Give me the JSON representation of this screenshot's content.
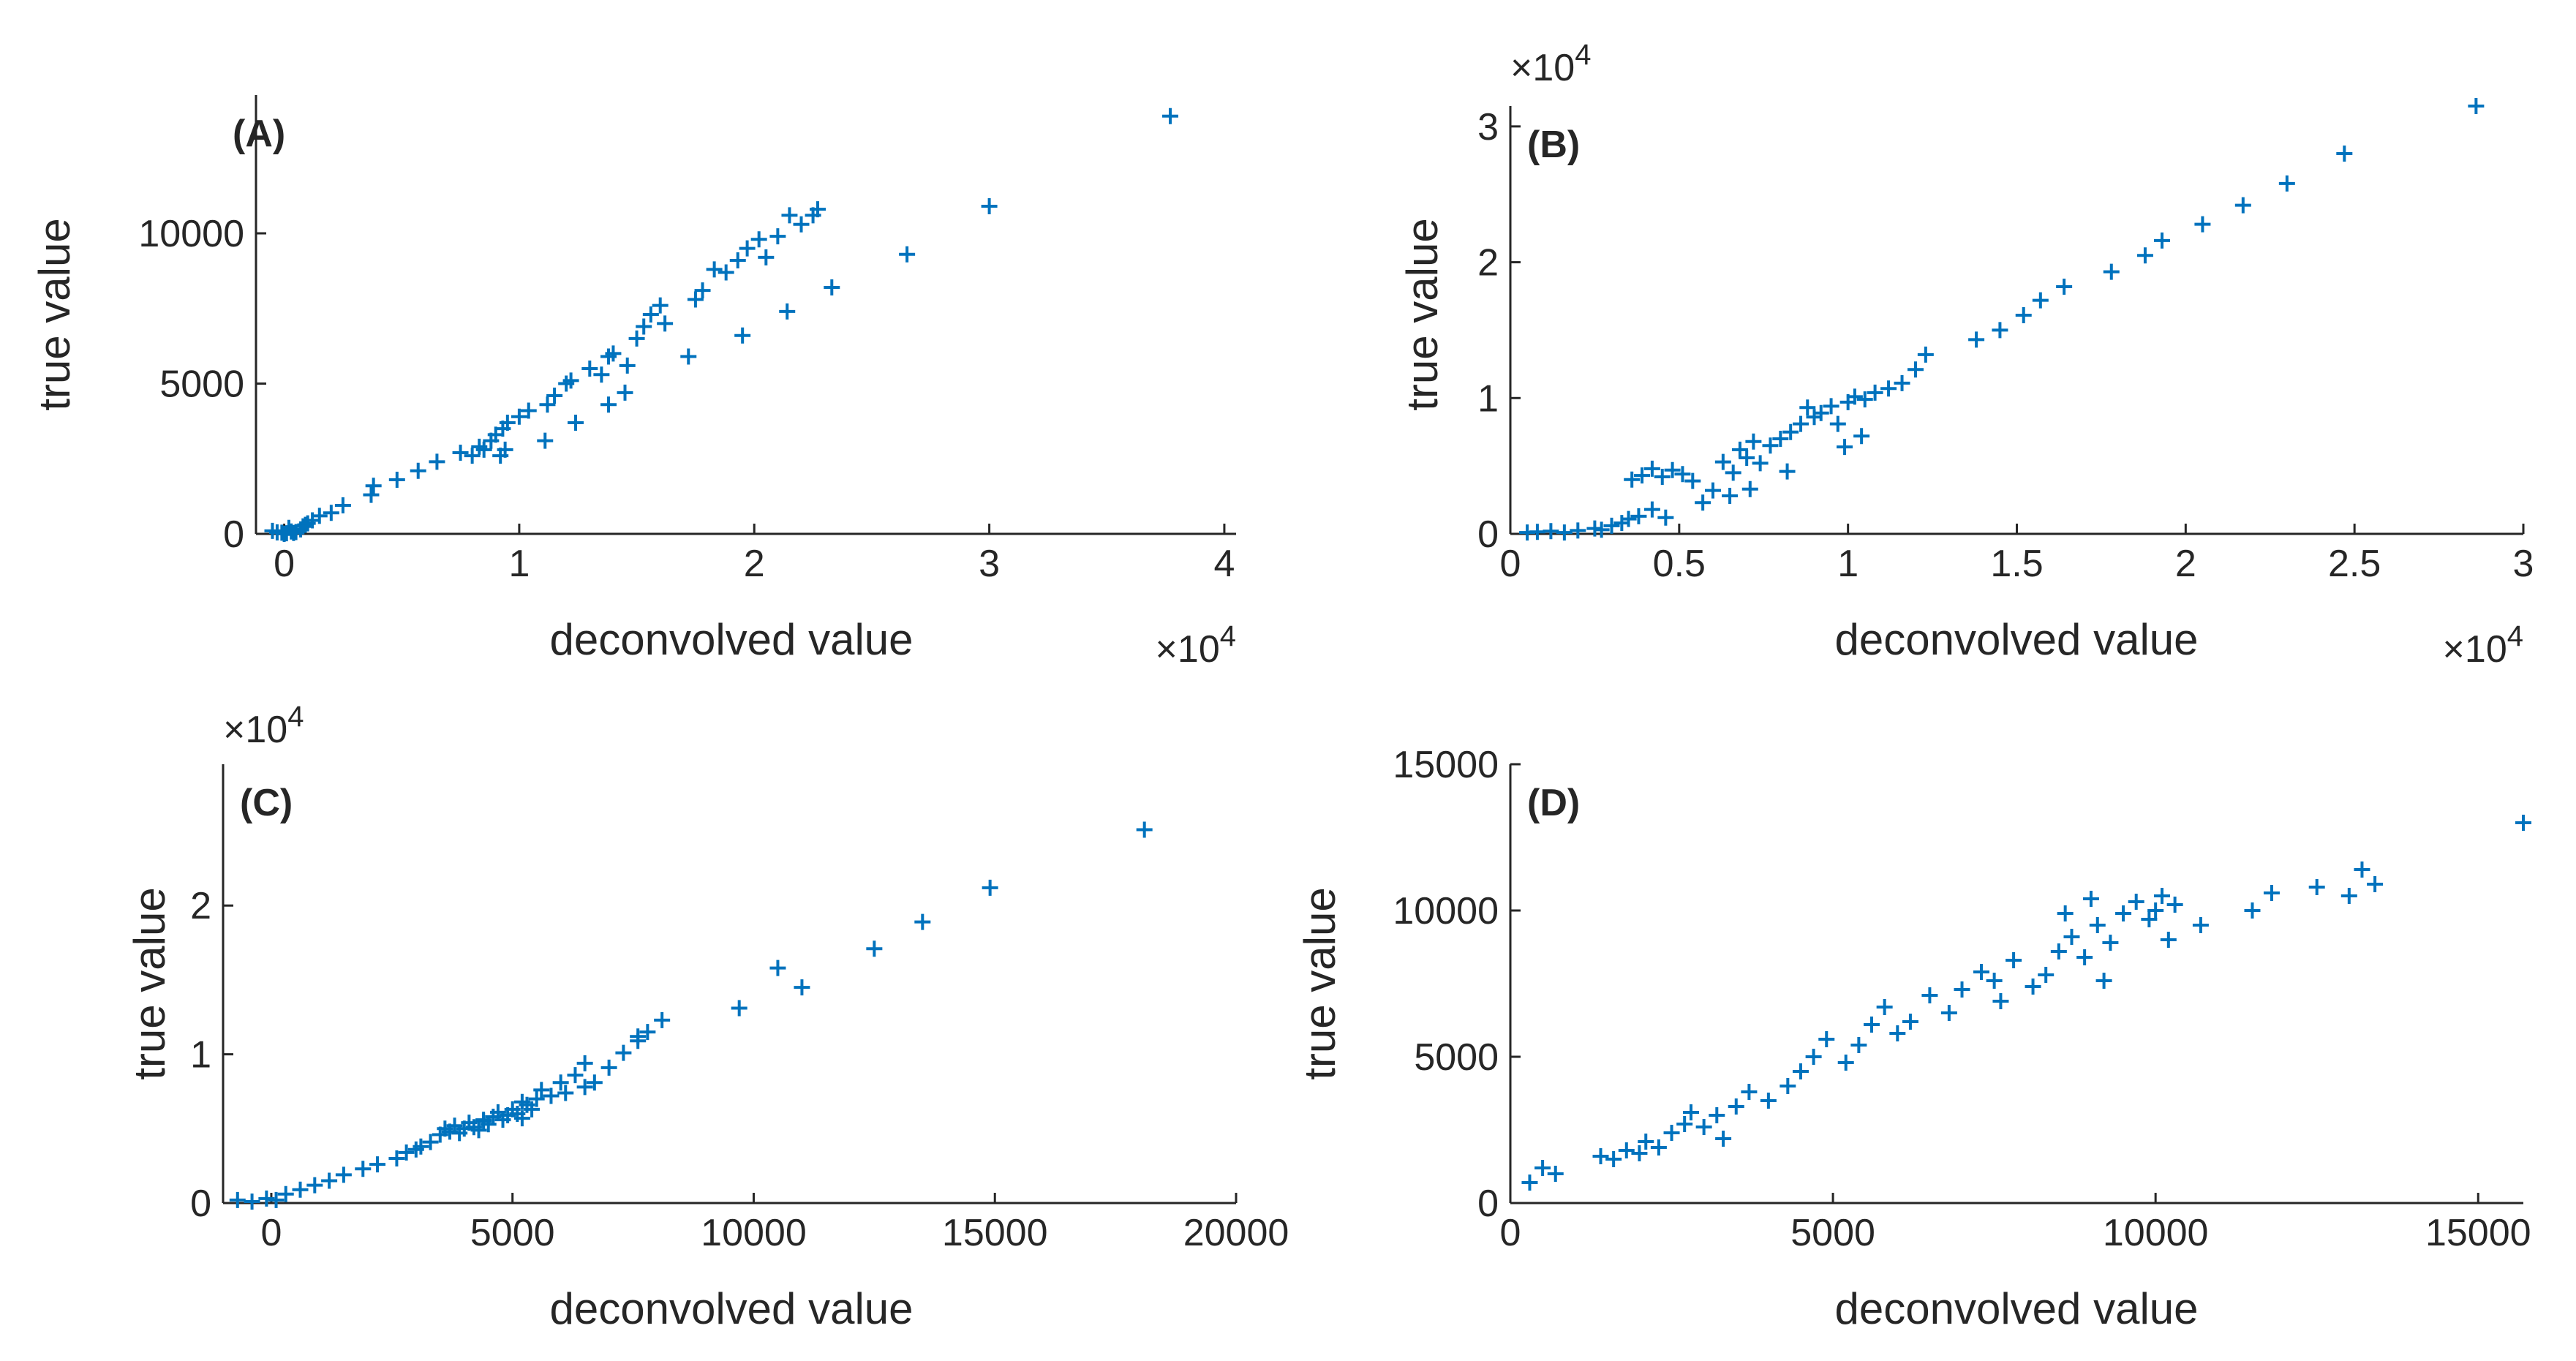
{
  "colors": {
    "marker": "#0072BD",
    "axis": "#262626"
  },
  "chart_data": [
    {
      "type": "scatter",
      "panel_label": "(A)",
      "xlabel": "deconvolved value",
      "ylabel": "true value",
      "x_exponent": "×10",
      "x_exponent_power": "4",
      "y_exponent": "",
      "y_exponent_power": "",
      "xlim": [
        -1200,
        40500
      ],
      "ylim": [
        0,
        14600
      ],
      "x_ticks": [
        0,
        10000,
        20000,
        30000,
        40000
      ],
      "x_tick_labels": [
        "0",
        "1",
        "2",
        "3",
        "4"
      ],
      "y_ticks": [
        0,
        5000,
        10000
      ],
      "y_tick_labels": [
        "0",
        "5000",
        "10000"
      ],
      "marker": "+",
      "points": [
        [
          -300,
          50
        ],
        [
          -100,
          40
        ],
        [
          100,
          20
        ],
        [
          300,
          80
        ],
        [
          500,
          60
        ],
        [
          700,
          150
        ],
        [
          200,
          200
        ],
        [
          900,
          300
        ],
        [
          1200,
          450
        ],
        [
          1500,
          600
        ],
        [
          -500,
          100
        ],
        [
          0,
          0
        ],
        [
          400,
          30
        ],
        [
          800,
          250
        ],
        [
          1000,
          350
        ],
        [
          2000,
          700
        ],
        [
          2500,
          950
        ],
        [
          3700,
          1300
        ],
        [
          3800,
          1600
        ],
        [
          4800,
          1800
        ],
        [
          5700,
          2100
        ],
        [
          6500,
          2400
        ],
        [
          7500,
          2700
        ],
        [
          8000,
          2600
        ],
        [
          8300,
          2900
        ],
        [
          8500,
          2800
        ],
        [
          8800,
          3100
        ],
        [
          9000,
          3300
        ],
        [
          9300,
          3500
        ],
        [
          9500,
          3700
        ],
        [
          9200,
          2600
        ],
        [
          9400,
          2800
        ],
        [
          10000,
          3900
        ],
        [
          10400,
          4100
        ],
        [
          11100,
          3100
        ],
        [
          11200,
          4300
        ],
        [
          11500,
          4600
        ],
        [
          12000,
          5000
        ],
        [
          12400,
          3700
        ],
        [
          12200,
          5100
        ],
        [
          13000,
          5500
        ],
        [
          13500,
          5300
        ],
        [
          13800,
          5900
        ],
        [
          14000,
          6000
        ],
        [
          13800,
          4300
        ],
        [
          14500,
          4700
        ],
        [
          14600,
          5600
        ],
        [
          15000,
          6500
        ],
        [
          15300,
          6900
        ],
        [
          15600,
          7300
        ],
        [
          16000,
          7600
        ],
        [
          16200,
          7000
        ],
        [
          17200,
          5900
        ],
        [
          17500,
          7800
        ],
        [
          17800,
          8100
        ],
        [
          18300,
          8800
        ],
        [
          18800,
          8700
        ],
        [
          19300,
          9100
        ],
        [
          19700,
          9500
        ],
        [
          20200,
          9800
        ],
        [
          20500,
          9200
        ],
        [
          21000,
          9900
        ],
        [
          21500,
          10600
        ],
        [
          22000,
          10300
        ],
        [
          22500,
          10600
        ],
        [
          22700,
          10800
        ],
        [
          19500,
          6600
        ],
        [
          21400,
          7400
        ],
        [
          23300,
          8200
        ],
        [
          26500,
          9300
        ],
        [
          30000,
          10900
        ],
        [
          37700,
          13900
        ]
      ]
    },
    {
      "type": "scatter",
      "panel_label": "(B)",
      "xlabel": "deconvolved value",
      "ylabel": "true value",
      "x_exponent": "×10",
      "x_exponent_power": "4",
      "y_exponent": "×10",
      "y_exponent_power": "4",
      "xlim": [
        0,
        30000
      ],
      "ylim": [
        0,
        31500
      ],
      "x_ticks": [
        0,
        5000,
        10000,
        15000,
        20000,
        25000,
        30000
      ],
      "x_tick_labels": [
        "0",
        "0.5",
        "1",
        "1.5",
        "2",
        "2.5",
        "3"
      ],
      "y_ticks": [
        0,
        10000,
        20000,
        30000
      ],
      "y_tick_labels": [
        "0",
        "1",
        "2",
        "3"
      ],
      "marker": "+",
      "points": [
        [
          500,
          100
        ],
        [
          800,
          150
        ],
        [
          1200,
          200
        ],
        [
          1600,
          100
        ],
        [
          2000,
          250
        ],
        [
          2500,
          400
        ],
        [
          2700,
          300
        ],
        [
          3000,
          600
        ],
        [
          3300,
          800
        ],
        [
          3500,
          1100
        ],
        [
          3800,
          1300
        ],
        [
          4200,
          1800
        ],
        [
          4600,
          1200
        ],
        [
          3600,
          4000
        ],
        [
          3900,
          4300
        ],
        [
          4200,
          4800
        ],
        [
          4500,
          4200
        ],
        [
          4800,
          4700
        ],
        [
          5100,
          4400
        ],
        [
          5400,
          3900
        ],
        [
          5700,
          2300
        ],
        [
          6000,
          3200
        ],
        [
          6300,
          5300
        ],
        [
          6600,
          4500
        ],
        [
          6800,
          6200
        ],
        [
          7000,
          5600
        ],
        [
          7200,
          6800
        ],
        [
          7400,
          5200
        ],
        [
          7700,
          6500
        ],
        [
          8000,
          7000
        ],
        [
          8300,
          7500
        ],
        [
          8600,
          8100
        ],
        [
          8800,
          9300
        ],
        [
          9000,
          8600
        ],
        [
          9200,
          8900
        ],
        [
          9500,
          9400
        ],
        [
          9700,
          8100
        ],
        [
          10000,
          9700
        ],
        [
          10200,
          10100
        ],
        [
          10500,
          9900
        ],
        [
          10800,
          10400
        ],
        [
          11200,
          10700
        ],
        [
          11600,
          11100
        ],
        [
          12000,
          12100
        ],
        [
          12300,
          13200
        ],
        [
          13800,
          14300
        ],
        [
          14500,
          15000
        ],
        [
          15200,
          16100
        ],
        [
          15700,
          17200
        ],
        [
          16400,
          18200
        ],
        [
          17800,
          19300
        ],
        [
          18800,
          20500
        ],
        [
          19300,
          21600
        ],
        [
          20500,
          22800
        ],
        [
          21700,
          24200
        ],
        [
          23000,
          25800
        ],
        [
          24700,
          28000
        ],
        [
          28600,
          31500
        ],
        [
          6500,
          2800
        ],
        [
          7100,
          3300
        ],
        [
          8200,
          4600
        ],
        [
          9900,
          6400
        ],
        [
          10400,
          7200
        ]
      ]
    },
    {
      "type": "scatter",
      "panel_label": "(C)",
      "xlabel": "deconvolved value",
      "ylabel": "true value",
      "x_exponent": "",
      "x_exponent_power": "",
      "y_exponent": "×10",
      "y_exponent_power": "4",
      "xlim": [
        -1000,
        20000
      ],
      "ylim": [
        0,
        29500
      ],
      "x_ticks": [
        0,
        5000,
        10000,
        15000,
        20000
      ],
      "x_tick_labels": [
        "0",
        "5000",
        "10000",
        "15000",
        "20000"
      ],
      "y_ticks": [
        0,
        10000,
        20000
      ],
      "y_tick_labels": [
        "0",
        "1",
        "2"
      ],
      "marker": "+",
      "points": [
        [
          -700,
          200
        ],
        [
          -400,
          100
        ],
        [
          -100,
          300
        ],
        [
          100,
          200
        ],
        [
          300,
          600
        ],
        [
          600,
          900
        ],
        [
          900,
          1200
        ],
        [
          1200,
          1500
        ],
        [
          1500,
          1900
        ],
        [
          1900,
          2300
        ],
        [
          2200,
          2600
        ],
        [
          2600,
          3000
        ],
        [
          2800,
          3400
        ],
        [
          3100,
          3800
        ],
        [
          3300,
          4100
        ],
        [
          3500,
          4600
        ],
        [
          3600,
          5000
        ],
        [
          3700,
          4800
        ],
        [
          3800,
          5200
        ],
        [
          3900,
          4700
        ],
        [
          4000,
          5000
        ],
        [
          4100,
          5400
        ],
        [
          4200,
          5100
        ],
        [
          4300,
          4900
        ],
        [
          4400,
          5600
        ],
        [
          4500,
          5300
        ],
        [
          4600,
          5800
        ],
        [
          4700,
          6100
        ],
        [
          4800,
          5600
        ],
        [
          4900,
          5900
        ],
        [
          5000,
          6300
        ],
        [
          5100,
          6000
        ],
        [
          5200,
          5700
        ],
        [
          5300,
          6600
        ],
        [
          5400,
          6300
        ],
        [
          5500,
          7000
        ],
        [
          5600,
          7600
        ],
        [
          5800,
          7200
        ],
        [
          6000,
          8100
        ],
        [
          6100,
          7400
        ],
        [
          6300,
          8600
        ],
        [
          6500,
          7800
        ],
        [
          6700,
          8100
        ],
        [
          7000,
          9100
        ],
        [
          7300,
          10100
        ],
        [
          7600,
          10900
        ],
        [
          7800,
          11500
        ],
        [
          8100,
          12300
        ],
        [
          9700,
          13100
        ],
        [
          10500,
          15800
        ],
        [
          11000,
          14500
        ],
        [
          12500,
          17100
        ],
        [
          13500,
          18900
        ],
        [
          14900,
          21200
        ],
        [
          18100,
          25100
        ],
        [
          3000,
          3600
        ],
        [
          5200,
          6800
        ],
        [
          6500,
          9400
        ],
        [
          7600,
          11200
        ],
        [
          4400,
          5500
        ]
      ]
    },
    {
      "type": "scatter",
      "panel_label": "(D)",
      "xlabel": "deconvolved value",
      "ylabel": "true value",
      "x_exponent": "",
      "x_exponent_power": "",
      "y_exponent": "",
      "y_exponent_power": "",
      "xlim": [
        0,
        15700
      ],
      "ylim": [
        0,
        15000
      ],
      "x_ticks": [
        0,
        5000,
        10000,
        15000
      ],
      "x_tick_labels": [
        "0",
        "5000",
        "10000",
        "15000"
      ],
      "y_ticks": [
        0,
        5000,
        10000,
        15000
      ],
      "y_tick_labels": [
        "0",
        "5000",
        "10000",
        "15000"
      ],
      "marker": "+",
      "points": [
        [
          300,
          700
        ],
        [
          500,
          1200
        ],
        [
          700,
          1000
        ],
        [
          1400,
          1600
        ],
        [
          1600,
          1500
        ],
        [
          1800,
          1800
        ],
        [
          2000,
          1700
        ],
        [
          2100,
          2100
        ],
        [
          2300,
          1900
        ],
        [
          2500,
          2400
        ],
        [
          2700,
          2700
        ],
        [
          2800,
          3100
        ],
        [
          3000,
          2600
        ],
        [
          3200,
          3000
        ],
        [
          3300,
          2200
        ],
        [
          3500,
          3300
        ],
        [
          3700,
          3800
        ],
        [
          4000,
          3500
        ],
        [
          4300,
          4000
        ],
        [
          4500,
          4500
        ],
        [
          4700,
          5000
        ],
        [
          4900,
          5600
        ],
        [
          5200,
          4800
        ],
        [
          5400,
          5400
        ],
        [
          5600,
          6100
        ],
        [
          5800,
          6700
        ],
        [
          6000,
          5800
        ],
        [
          6200,
          6200
        ],
        [
          6500,
          7100
        ],
        [
          6800,
          6500
        ],
        [
          7000,
          7300
        ],
        [
          7300,
          7900
        ],
        [
          7600,
          6900
        ],
        [
          7800,
          8300
        ],
        [
          8100,
          7400
        ],
        [
          8300,
          7800
        ],
        [
          8500,
          8600
        ],
        [
          8700,
          9100
        ],
        [
          8900,
          8400
        ],
        [
          9100,
          9500
        ],
        [
          9300,
          8900
        ],
        [
          9500,
          9900
        ],
        [
          9700,
          10300
        ],
        [
          9900,
          9700
        ],
        [
          10100,
          10500
        ],
        [
          10300,
          10200
        ],
        [
          10700,
          9500
        ],
        [
          11500,
          10000
        ],
        [
          11800,
          10600
        ],
        [
          12500,
          10800
        ],
        [
          13000,
          10500
        ],
        [
          13200,
          11400
        ],
        [
          13400,
          10900
        ],
        [
          15700,
          13000
        ],
        [
          8600,
          9900
        ],
        [
          9200,
          7600
        ],
        [
          9000,
          10400
        ],
        [
          10000,
          10000
        ],
        [
          10200,
          9000
        ],
        [
          7500,
          7600
        ]
      ]
    }
  ]
}
